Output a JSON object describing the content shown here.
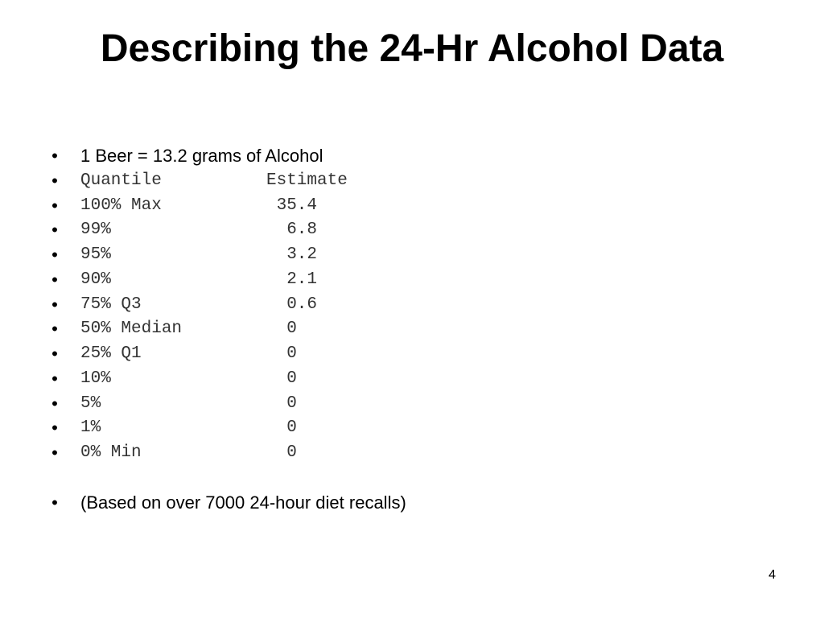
{
  "slide": {
    "title": "Describing the 24-Hr Alcohol Data",
    "intro_bullet": "1 Beer = 13.2 grams of Alcohol",
    "table_header": {
      "label": "Quantile",
      "value": "Estimate"
    },
    "quantiles": [
      {
        "label": "100% Max",
        "value": " 35.4"
      },
      {
        "label": "99%",
        "value": "  6.8"
      },
      {
        "label": "95%",
        "value": "  3.2"
      },
      {
        "label": "90%",
        "value": "  2.1"
      },
      {
        "label": "75% Q3",
        "value": "  0.6"
      },
      {
        "label": "50% Median",
        "value": "  0"
      },
      {
        "label": "25% Q1",
        "value": "  0"
      },
      {
        "label": "10%",
        "value": "  0"
      },
      {
        "label": "5%",
        "value": "  0"
      },
      {
        "label": "1%",
        "value": "  0"
      },
      {
        "label": "0% Min",
        "value": "  0"
      }
    ],
    "footnote_bullet": "(Based on over 7000 24-hour diet recalls)",
    "bullet_glyph": "•",
    "page_number": "4"
  }
}
